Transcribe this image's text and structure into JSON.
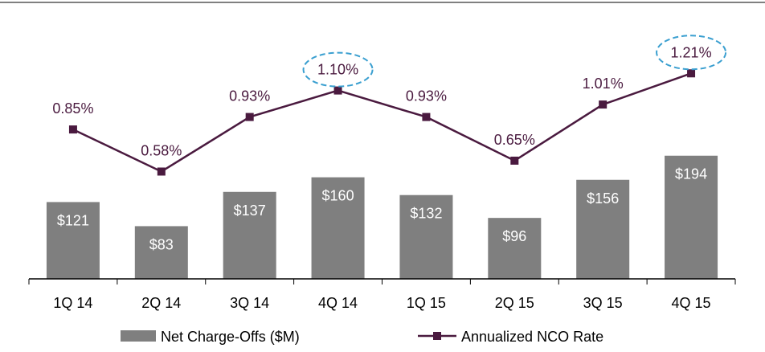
{
  "colors": {
    "bar": "#7f7f7f",
    "line": "#4a1a3f",
    "highlight": "#3a9fd0",
    "axis": "#000000"
  },
  "chart_data": {
    "type": "bar",
    "categories": [
      "1Q 14",
      "2Q 14",
      "3Q 14",
      "4Q 14",
      "1Q 15",
      "2Q 15",
      "3Q 15",
      "4Q 15"
    ],
    "series": [
      {
        "name": "Net Charge-Offs ($M)",
        "type": "bar",
        "values": [
          121,
          83,
          137,
          160,
          132,
          96,
          156,
          194
        ],
        "labels": [
          "$121",
          "$83",
          "$137",
          "$160",
          "$132",
          "$96",
          "$156",
          "$194"
        ]
      },
      {
        "name": "Annualized NCO Rate",
        "type": "line",
        "values": [
          0.85,
          0.58,
          0.93,
          1.1,
          0.93,
          0.65,
          1.01,
          1.21
        ],
        "labels": [
          "0.85%",
          "0.58%",
          "0.93%",
          "1.10%",
          "0.93%",
          "0.65%",
          "1.01%",
          "1.21%"
        ],
        "highlighted": [
          "4Q 14",
          "4Q 15"
        ]
      }
    ],
    "legend": "bottom",
    "grid": false
  }
}
